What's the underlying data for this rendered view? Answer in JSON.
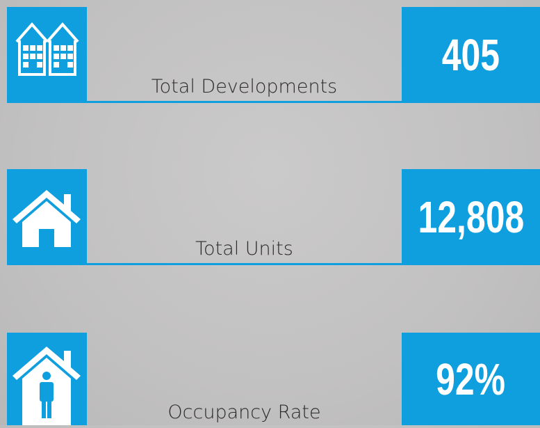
{
  "items": [
    {
      "label": "Total Developments",
      "value": "405"
    },
    {
      "label": "Total Units",
      "value": "12,808"
    },
    {
      "label": "Occupancy Rate",
      "value": "92%"
    }
  ]
}
